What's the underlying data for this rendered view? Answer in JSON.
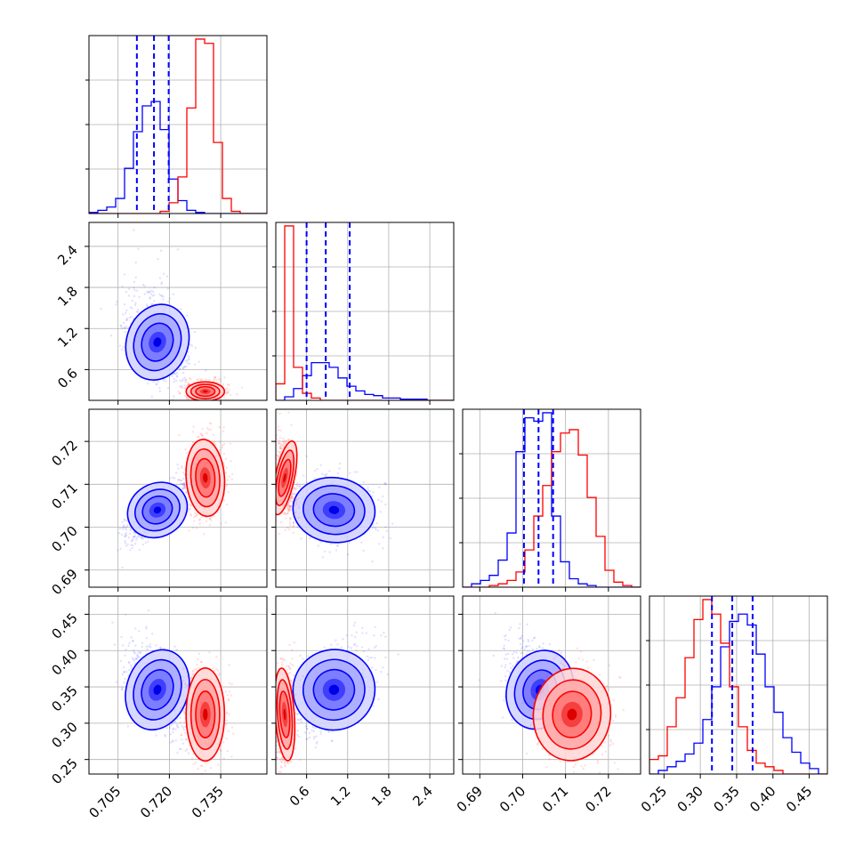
{
  "chart_data": {
    "type": "corner",
    "title": "",
    "parameters": [
      {
        "range": [
          0.6965,
          0.7485
        ],
        "ticks": [
          0.705,
          0.72,
          0.735
        ],
        "tick_labels": [
          "0.705",
          "0.720",
          "0.735"
        ]
      },
      {
        "range": [
          0.15,
          2.75
        ],
        "ticks": [
          0.6,
          1.2,
          1.8,
          2.4
        ],
        "tick_labels": [
          "0.6",
          "1.2",
          "1.8",
          "2.4"
        ]
      },
      {
        "range": [
          0.686,
          0.7275
        ],
        "ticks": [
          0.69,
          0.7,
          0.71,
          0.72
        ],
        "tick_labels": [
          "0.69",
          "0.70",
          "0.71",
          "0.72"
        ]
      },
      {
        "range": [
          0.23,
          0.475
        ],
        "ticks": [
          0.25,
          0.3,
          0.35,
          0.4,
          0.45
        ],
        "tick_labels": [
          "0.25",
          "0.30",
          "0.35",
          "0.40",
          "0.45"
        ]
      }
    ],
    "series": [
      {
        "color": "#0000ff",
        "means": [
          0.7165,
          1.0,
          0.704,
          0.346
        ],
        "sigmas": [
          0.0045,
          0.3,
          0.0038,
          0.03
        ],
        "correlations": {
          "1-0": -0.45,
          "2-0": 0.75,
          "2-1": -0.15,
          "3-0": -0.45,
          "3-1": 0.5,
          "3-2": -0.5
        }
      },
      {
        "color": "#ff0000",
        "means": [
          0.7305,
          0.28,
          0.7115,
          0.312
        ],
        "sigmas": [
          0.0028,
          0.07,
          0.0045,
          0.032
        ],
        "correlations": {
          "1-0": 0.0,
          "2-0": 0.1,
          "2-1": -0.3,
          "3-0": 0.0,
          "3-1": 0.1,
          "3-2": -0.15
        }
      }
    ],
    "histograms": [
      {
        "bin_edges": [
          0.6965,
          0.6991,
          0.7017,
          0.7043,
          0.7069,
          0.7095,
          0.7121,
          0.7147,
          0.7173,
          0.7199,
          0.7225,
          0.7251,
          0.7277,
          0.7303,
          0.7329,
          0.7355,
          0.7381,
          0.7407,
          0.7433,
          0.7459,
          0.7485
        ],
        "counts": {
          "blue": [
            1,
            3,
            6,
            14,
            42,
            76,
            100,
            104,
            78,
            32,
            12,
            3,
            1,
            0,
            0,
            0,
            0,
            0,
            0,
            0
          ],
          "red": [
            0,
            0,
            0,
            0,
            0,
            0,
            0,
            0,
            2,
            10,
            34,
            98,
            162,
            158,
            66,
            14,
            2,
            0,
            0,
            0
          ]
        }
      },
      {
        "bin_edges": [
          0.15,
          0.28,
          0.41,
          0.54,
          0.67,
          0.8,
          0.93,
          1.06,
          1.19,
          1.32,
          1.45,
          1.58,
          1.71,
          1.84,
          1.97,
          2.1,
          2.23,
          2.36,
          2.49,
          2.62,
          2.75
        ],
        "counts": {
          "blue": [
            0,
            3,
            10,
            21,
            32,
            32,
            28,
            19,
            12,
            8,
            5,
            4,
            2,
            2,
            1,
            1,
            1,
            0,
            0,
            0
          ],
          "red": [
            14,
            148,
            28,
            6,
            2,
            0,
            0,
            0,
            0,
            0,
            0,
            0,
            0,
            0,
            0,
            0,
            0,
            0,
            0,
            0
          ]
        }
      },
      {
        "bin_edges": [
          0.686,
          0.688075,
          0.69015,
          0.692225,
          0.6943,
          0.696375,
          0.69845,
          0.700525,
          0.7026,
          0.704675,
          0.70675,
          0.708825,
          0.7109,
          0.712975,
          0.71505,
          0.717125,
          0.7192,
          0.721275,
          0.72335,
          0.725425,
          0.7275
        ],
        "counts": {
          "blue": [
            0,
            2,
            4,
            7,
            16,
            32,
            80,
            100,
            98,
            103,
            42,
            15,
            5,
            2,
            1,
            0,
            0,
            0,
            0,
            0
          ],
          "red": [
            0,
            0,
            0,
            1,
            2,
            4,
            9,
            22,
            42,
            60,
            80,
            91,
            93,
            78,
            53,
            30,
            10,
            3,
            1,
            0
          ]
        }
      },
      {
        "bin_edges": [
          0.23,
          0.24225,
          0.2545,
          0.26675,
          0.279,
          0.29125,
          0.3035,
          0.31575,
          0.328,
          0.34025,
          0.3525,
          0.36475,
          0.377,
          0.38925,
          0.4015,
          0.41375,
          0.426,
          0.43825,
          0.4505,
          0.46275,
          0.475
        ],
        "counts": {
          "blue": [
            0,
            2,
            4,
            7,
            11,
            17,
            30,
            48,
            70,
            84,
            88,
            82,
            66,
            48,
            34,
            20,
            12,
            6,
            3,
            0
          ],
          "red": [
            8,
            10,
            26,
            42,
            64,
            85,
            96,
            88,
            72,
            48,
            26,
            13,
            6,
            4,
            2,
            0,
            0,
            0,
            0,
            0
          ]
        }
      }
    ],
    "quantile_lines": [
      [
        0.7105,
        0.7155,
        0.7198
      ],
      [
        0.6,
        0.88,
        1.23
      ],
      [
        0.7003,
        0.7037,
        0.7071
      ],
      [
        0.316,
        0.344,
        0.372
      ]
    ],
    "quantile_color": "#0000ff",
    "grid": true
  }
}
